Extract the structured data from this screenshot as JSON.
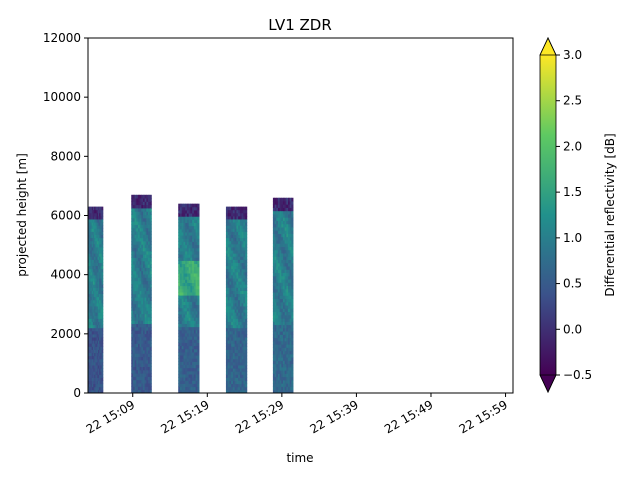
{
  "chart_data": {
    "type": "heatmap",
    "title": "LV1 ZDR",
    "xlabel": "time",
    "ylabel": "projected height [m]",
    "colorbar_label": "Differential reflectivity [dB]",
    "colormap": "viridis",
    "extend": "both",
    "xlim": [
      "15:03",
      "15:60"
    ],
    "ylim": [
      0,
      12000
    ],
    "clim": [
      -0.5,
      3.0
    ],
    "x_ticks": [
      {
        "t": "15:09",
        "label": "22 15:09"
      },
      {
        "t": "15:19",
        "label": "22 15:19"
      },
      {
        "t": "15:29",
        "label": "22 15:29"
      },
      {
        "t": "15:39",
        "label": "22 15:39"
      },
      {
        "t": "15:49",
        "label": "22 15:49"
      },
      {
        "t": "15:59",
        "label": "22 15:59"
      }
    ],
    "y_ticks": [
      "0",
      "2000",
      "4000",
      "6000",
      "8000",
      "10000",
      "12000"
    ],
    "colorbar_ticks": [
      "−0.5",
      "0.0",
      "0.5",
      "1.0",
      "1.5",
      "2.0",
      "2.5",
      "3.0"
    ],
    "scans": [
      {
        "start": "15:03.0",
        "end": "15:05.0",
        "top_m": 6300
      },
      {
        "start": "15:08.8",
        "end": "15:11.5",
        "top_m": 6700
      },
      {
        "start": "15:15.1",
        "end": "15:17.9",
        "top_m": 6400
      },
      {
        "start": "15:21.5",
        "end": "15:24.3",
        "top_m": 6300
      },
      {
        "start": "15:27.8",
        "end": "15:30.5",
        "top_m": 6600
      }
    ]
  },
  "colors": {
    "viridis": [
      "#440154",
      "#3b528b",
      "#21918c",
      "#5ec962",
      "#fde725"
    ]
  }
}
